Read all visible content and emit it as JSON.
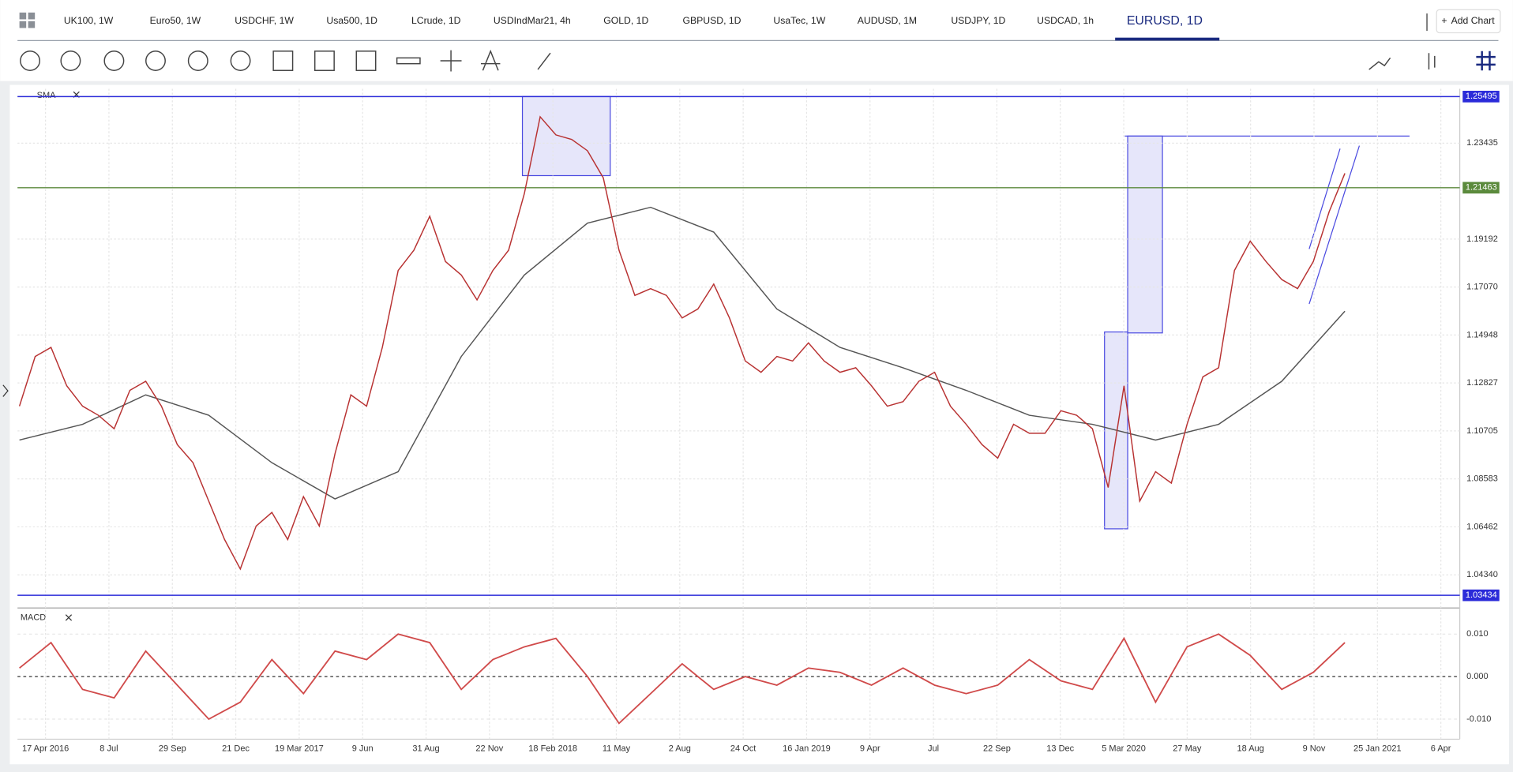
{
  "tabs": [
    "UK100, 1W",
    "Euro50, 1W",
    "USDCHF, 1W",
    "Usa500, 1D",
    "LCrude, 1D",
    "USDIndMar21, 4h",
    "GOLD, 1D",
    "GBPUSD, 1D",
    "UsaTec, 1W",
    "AUDUSD, 1M",
    "USDJPY, 1D",
    "USDCAD, 1h",
    "EURUSD, 1D"
  ],
  "active_tab": 12,
  "add_chart": "Add Chart",
  "chart": {
    "type": "line",
    "indicator_label": "SMA",
    "grid": true,
    "x_labels": [
      "17 Apr 2016",
      "8 Jul",
      "29 Sep",
      "21 Dec",
      "19 Mar 2017",
      "9 Jun",
      "31 Aug",
      "22 Nov",
      "18 Feb 2018",
      "11 May",
      "2 Aug",
      "24 Oct",
      "16 Jan 2019",
      "9 Apr",
      "Jul",
      "22 Sep",
      "13 Dec",
      "5 Mar 2020",
      "27 May",
      "18 Aug",
      "9 Nov",
      "25 Jan 2021",
      "6 Apr"
    ],
    "ylim": [
      1.0296,
      1.2584
    ],
    "yticks": [
      {
        "value": 1.0434,
        "label": "1.04340"
      },
      1.06462,
      1.08583,
      1.10705,
      1.12827,
      1.14948,
      {
        "value": 1.1707,
        "label": "1.17070"
      },
      1.19192,
      1.23435
    ],
    "levels": [
      {
        "value": 1.25495,
        "color": "#2b2bd9"
      },
      {
        "value": 1.21463,
        "color": "#5b8a3c"
      },
      {
        "value": 1.03434,
        "color": "#2b2bd9"
      }
    ],
    "price": {
      "color": "#b83232",
      "values": [
        1.118,
        1.14,
        1.144,
        1.127,
        1.118,
        1.114,
        1.108,
        1.125,
        1.129,
        1.118,
        1.101,
        1.093,
        1.076,
        1.059,
        1.046,
        1.065,
        1.071,
        1.059,
        1.078,
        1.065,
        1.097,
        1.123,
        1.118,
        1.144,
        1.178,
        1.187,
        1.202,
        1.182,
        1.176,
        1.165,
        1.178,
        1.187,
        1.212,
        1.246,
        1.238,
        1.236,
        1.231,
        1.219,
        1.187,
        1.167,
        1.17,
        1.167,
        1.157,
        1.161,
        1.172,
        1.157,
        1.138,
        1.133,
        1.14,
        1.138,
        1.146,
        1.138,
        1.133,
        1.135,
        1.127,
        1.118,
        1.12,
        1.129,
        1.133,
        1.118,
        1.11,
        1.101,
        1.095,
        1.11,
        1.106,
        1.106,
        1.116,
        1.114,
        1.108,
        1.082,
        1.127,
        1.076,
        1.089,
        1.084,
        1.11,
        1.131,
        1.135,
        1.178,
        1.191,
        1.182,
        1.174,
        1.17,
        1.182,
        1.204,
        1.221
      ]
    },
    "sma": {
      "color": "#555555",
      "values": [
        1.103,
        1.11,
        1.123,
        1.114,
        1.093,
        1.077,
        1.089,
        1.14,
        1.176,
        1.199,
        1.206,
        1.195,
        1.161,
        1.144,
        1.135,
        1.125,
        1.114,
        1.11,
        1.103,
        1.11,
        1.129,
        1.16
      ]
    }
  },
  "macd_panel": {
    "label": "MACD",
    "ylim": [
      -0.0145,
      0.0157
    ],
    "yticks": [
      {
        "value": -0.01,
        "label": "-0.010"
      },
      {
        "value": 0,
        "label": "0.000"
      },
      {
        "value": 0.01,
        "label": "0.010"
      }
    ],
    "series": {
      "color": "#d04a4a",
      "values": [
        0.002,
        0.008,
        -0.003,
        -0.005,
        0.006,
        -0.002,
        -0.01,
        -0.006,
        0.004,
        -0.004,
        0.006,
        0.004,
        0.01,
        0.008,
        -0.003,
        0.004,
        0.007,
        0.009,
        0.0,
        -0.011,
        -0.004,
        0.003,
        -0.003,
        0.0,
        -0.002,
        0.002,
        0.001,
        -0.002,
        0.002,
        -0.002,
        -0.004,
        -0.002,
        0.004,
        -0.001,
        -0.003,
        0.009,
        -0.006,
        0.007,
        0.01,
        0.005,
        -0.003,
        0.001,
        0.008
      ]
    }
  }
}
